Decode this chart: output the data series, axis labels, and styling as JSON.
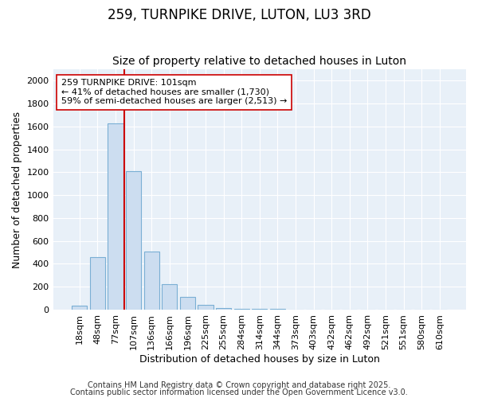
{
  "title": "259, TURNPIKE DRIVE, LUTON, LU3 3RD",
  "subtitle": "Size of property relative to detached houses in Luton",
  "xlabel": "Distribution of detached houses by size in Luton",
  "ylabel": "Number of detached properties",
  "categories": [
    "18sqm",
    "48sqm",
    "77sqm",
    "107sqm",
    "136sqm",
    "166sqm",
    "196sqm",
    "225sqm",
    "255sqm",
    "284sqm",
    "314sqm",
    "344sqm",
    "373sqm",
    "403sqm",
    "432sqm",
    "462sqm",
    "492sqm",
    "521sqm",
    "551sqm",
    "580sqm",
    "610sqm"
  ],
  "values": [
    35,
    460,
    1630,
    1210,
    510,
    220,
    110,
    40,
    15,
    5,
    5,
    5,
    0,
    0,
    0,
    0,
    0,
    0,
    0,
    0,
    0
  ],
  "bar_color": "#ccddf0",
  "bar_edge_color": "#7aafd4",
  "ylim": [
    0,
    2100
  ],
  "yticks": [
    0,
    200,
    400,
    600,
    800,
    1000,
    1200,
    1400,
    1600,
    1800,
    2000
  ],
  "vline_color": "#cc0000",
  "annotation_line1": "259 TURNPIKE DRIVE: 101sqm",
  "annotation_line2": "← 41% of detached houses are smaller (1,730)",
  "annotation_line3": "59% of semi-detached houses are larger (2,513) →",
  "annotation_box_color": "#ffffff",
  "annotation_box_edgecolor": "#cc0000",
  "footer1": "Contains HM Land Registry data © Crown copyright and database right 2025.",
  "footer2": "Contains public sector information licensed under the Open Government Licence v3.0.",
  "bg_color": "#ffffff",
  "plot_bg_color": "#e8f0f8",
  "grid_color": "#ffffff",
  "title_fontsize": 12,
  "subtitle_fontsize": 10,
  "label_fontsize": 9,
  "tick_fontsize": 8,
  "annot_fontsize": 8,
  "footer_fontsize": 7
}
